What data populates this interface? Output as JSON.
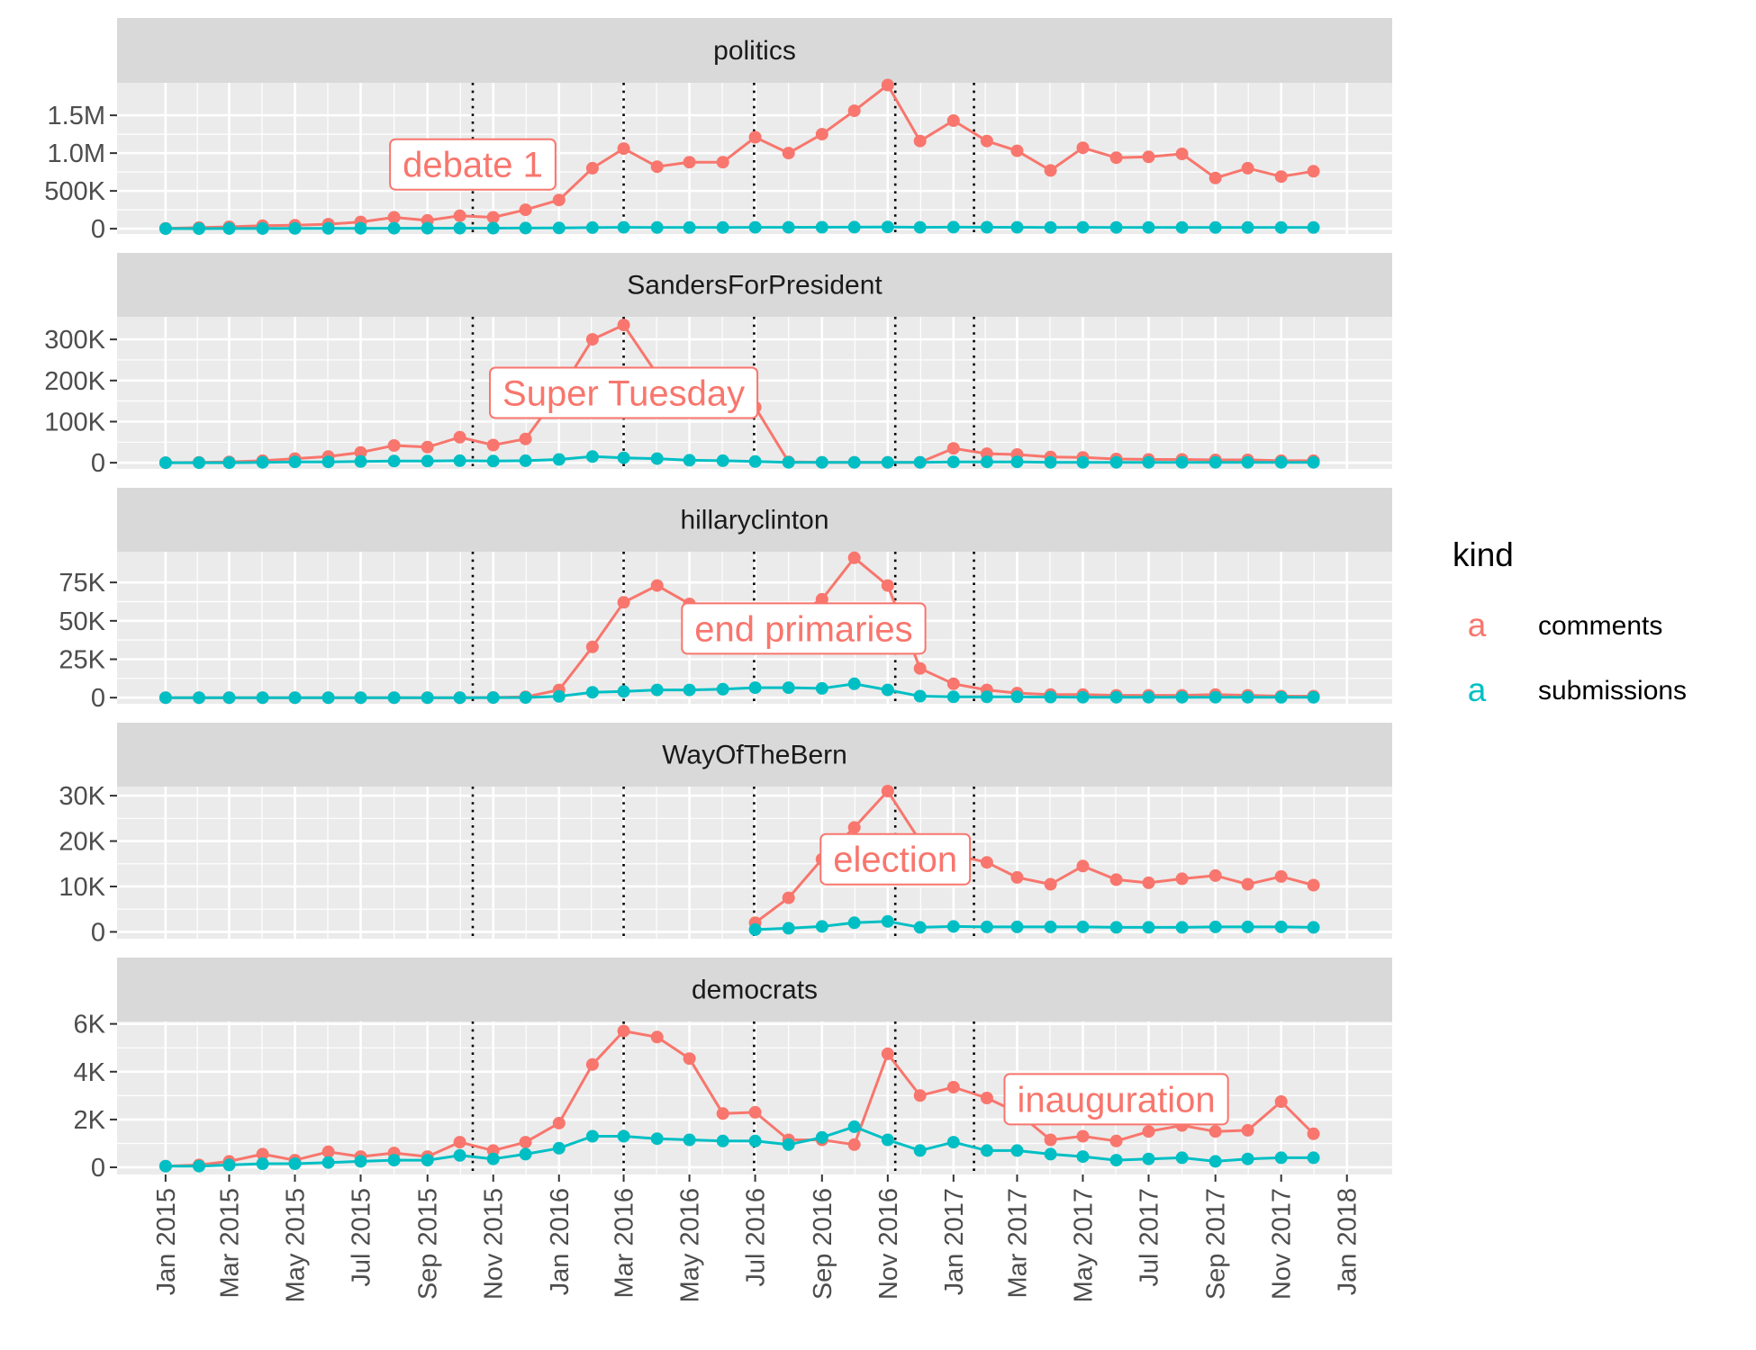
{
  "chart_data": {
    "type": "line",
    "facet_by": "subreddit",
    "x_dates": [
      "2015-01",
      "2015-02",
      "2015-03",
      "2015-04",
      "2015-05",
      "2015-06",
      "2015-07",
      "2015-08",
      "2015-09",
      "2015-10",
      "2015-11",
      "2015-12",
      "2016-01",
      "2016-02",
      "2016-03",
      "2016-04",
      "2016-05",
      "2016-06",
      "2016-07",
      "2016-08",
      "2016-09",
      "2016-10",
      "2016-11",
      "2016-12",
      "2017-01",
      "2017-02",
      "2017-03",
      "2017-04",
      "2017-05",
      "2017-06",
      "2017-07",
      "2017-08",
      "2017-09",
      "2017-10",
      "2017-11",
      "2017-12"
    ],
    "x_ticks": [
      "2015-01",
      "2015-03",
      "2015-05",
      "2015-07",
      "2015-09",
      "2015-11",
      "2016-01",
      "2016-03",
      "2016-05",
      "2016-07",
      "2016-09",
      "2016-11",
      "2017-01",
      "2017-03",
      "2017-05",
      "2017-07",
      "2017-09",
      "2017-11",
      "2018-01"
    ],
    "x_tick_labels": [
      "Jan 2015",
      "Mar 2015",
      "May 2015",
      "Jul 2015",
      "Sep 2015",
      "Nov 2015",
      "Jan 2016",
      "Mar 2016",
      "May 2016",
      "Jul 2016",
      "Sep 2016",
      "Nov 2016",
      "Jan 2017",
      "Mar 2017",
      "May 2017",
      "Jul 2017",
      "Sep 2017",
      "Nov 2017",
      "Jan 2018"
    ],
    "vlines": [
      "2015-10-13",
      "2016-03-01",
      "2016-06-30",
      "2016-11-08",
      "2017-01-20"
    ],
    "legend": {
      "title": "kind",
      "position": "right",
      "key_glyph": "a",
      "entries": [
        {
          "label": "comments",
          "color": "#F8766D"
        },
        {
          "label": "submissions",
          "color": "#00BFC4"
        }
      ]
    },
    "panels": [
      {
        "title": "politics",
        "yticks": [
          0,
          500000,
          1000000,
          1500000
        ],
        "ytick_labels": [
          "0",
          "500K",
          "1.0M",
          "1.5M"
        ],
        "ylim": [
          -70000,
          1930000
        ],
        "series": [
          {
            "name": "comments",
            "color": "#F8766D",
            "start_index": 0,
            "values": [
              5000,
              15000,
              25000,
              40000,
              45000,
              60000,
              90000,
              150000,
              110000,
              170000,
              150000,
              250000,
              380000,
              800000,
              1060000,
              820000,
              880000,
              880000,
              1210000,
              1000000,
              1250000,
              1560000,
              1900000,
              1160000,
              1430000,
              1160000,
              1030000,
              770000,
              1070000,
              940000,
              950000,
              990000,
              670000,
              800000,
              690000,
              760000
            ]
          },
          {
            "name": "submissions",
            "color": "#00BFC4",
            "start_index": 0,
            "values": [
              2000,
              2000,
              3000,
              3000,
              4000,
              4000,
              5000,
              6000,
              6000,
              7000,
              7000,
              8000,
              10000,
              15000,
              18000,
              16000,
              16000,
              16000,
              18000,
              18000,
              19000,
              21000,
              23000,
              18000,
              20000,
              19000,
              18000,
              17000,
              18000,
              17000,
              17000,
              17000,
              16000,
              16000,
              16000,
              16000
            ]
          }
        ],
        "annotation": {
          "label": "debate 1",
          "x": "2015-10-13",
          "y": 850000
        }
      },
      {
        "title": "SandersForPresident",
        "yticks": [
          0,
          100000,
          200000,
          300000
        ],
        "ytick_labels": [
          "0",
          "100K",
          "200K",
          "300K"
        ],
        "ylim": [
          -15000,
          355000
        ],
        "series": [
          {
            "name": "comments",
            "color": "#F8766D",
            "start_index": 0,
            "values": [
              0,
              1000,
              2000,
              5000,
              10000,
              15000,
              25000,
              42000,
              38000,
              62000,
              43000,
              58000,
              170000,
              300000,
              335000,
              215000,
              185000,
              160000,
              135000,
              2000,
              1000,
              1000,
              1000,
              1000,
              35000,
              22000,
              20000,
              14000,
              13000,
              9000,
              8000,
              8000,
              7000,
              7000,
              5000,
              5000
            ]
          },
          {
            "name": "submissions",
            "color": "#00BFC4",
            "start_index": 0,
            "values": [
              0,
              0,
              0,
              1000,
              2000,
              2000,
              3000,
              4000,
              4000,
              5000,
              4000,
              5000,
              8000,
              15000,
              12000,
              10000,
              6000,
              5000,
              3000,
              1000,
              1000,
              1000,
              1000,
              1000,
              2000,
              2000,
              2000,
              1000,
              1000,
              1000,
              1000,
              1000,
              1000,
              1000,
              1000,
              1000
            ]
          }
        ],
        "annotation": {
          "label": "Super Tuesday",
          "x": "2016-03-01",
          "y": 170000
        }
      },
      {
        "title": "hillaryclinton",
        "yticks": [
          0,
          25000,
          50000,
          75000
        ],
        "ytick_labels": [
          "0",
          "25K",
          "50K",
          "75K"
        ],
        "ylim": [
          -4000,
          95000
        ],
        "series": [
          {
            "name": "comments",
            "color": "#F8766D",
            "start_index": 0,
            "values": [
              0,
              0,
              0,
              0,
              0,
              0,
              0,
              0,
              0,
              0,
              100,
              500,
              5000,
              33000,
              62000,
              73000,
              61000,
              45000,
              55000,
              52000,
              64000,
              91000,
              73000,
              19000,
              9000,
              5000,
              3000,
              2000,
              2000,
              1500,
              1500,
              1500,
              2000,
              1500,
              1000,
              1000
            ]
          },
          {
            "name": "submissions",
            "color": "#00BFC4",
            "start_index": 0,
            "values": [
              0,
              0,
              0,
              0,
              0,
              0,
              0,
              0,
              0,
              0,
              50,
              100,
              800,
              3500,
              4000,
              5000,
              5000,
              5500,
              6500,
              6500,
              6000,
              9000,
              5000,
              1000,
              500,
              500,
              500,
              400,
              300,
              300,
              300,
              300,
              300,
              300,
              200,
              200
            ]
          }
        ],
        "annotation": {
          "label": "end primaries",
          "x": "2016-08-15",
          "y": 45000
        }
      },
      {
        "title": "WayOfTheBern",
        "yticks": [
          0,
          10000,
          20000,
          30000
        ],
        "ytick_labels": [
          "0",
          "10K",
          "20K",
          "30K"
        ],
        "ylim": [
          -1500,
          32000
        ],
        "series": [
          {
            "name": "comments",
            "color": "#F8766D",
            "start_index": 18,
            "values": [
              2000,
              7500,
              16000,
              23000,
              31000,
              20000,
              17000,
              15300,
              12000,
              10500,
              14500,
              11500,
              10800,
              11700,
              12400,
              10500,
              12200,
              10300
            ]
          },
          {
            "name": "submissions",
            "color": "#00BFC4",
            "start_index": 18,
            "values": [
              500,
              800,
              1200,
              2000,
              2300,
              1000,
              1200,
              1100,
              1100,
              1100,
              1100,
              1000,
              1000,
              1000,
              1100,
              1100,
              1100,
              1000
            ]
          }
        ],
        "annotation": {
          "label": "election",
          "x": "2016-11-08",
          "y": 16000
        }
      },
      {
        "title": "democrats",
        "yticks": [
          0,
          2000,
          4000,
          6000
        ],
        "ytick_labels": [
          "0",
          "2K",
          "4K",
          "6K"
        ],
        "ylim": [
          -300,
          6100
        ],
        "series": [
          {
            "name": "comments",
            "color": "#F8766D",
            "start_index": 0,
            "values": [
              50,
              100,
              250,
              550,
              300,
              650,
              450,
              600,
              450,
              1050,
              700,
              1050,
              1850,
              4300,
              5700,
              5450,
              4550,
              2250,
              2300,
              1150,
              1150,
              950,
              4750,
              3000,
              3350,
              2900,
              2300,
              1150,
              1300,
              1100,
              1500,
              1750,
              1500,
              1550,
              2750,
              1400
            ]
          },
          {
            "name": "submissions",
            "color": "#00BFC4",
            "start_index": 0,
            "values": [
              50,
              50,
              100,
              150,
              150,
              200,
              250,
              300,
              300,
              500,
              350,
              550,
              800,
              1300,
              1300,
              1200,
              1150,
              1100,
              1100,
              950,
              1250,
              1700,
              1150,
              700,
              1050,
              700,
              700,
              550,
              450,
              300,
              350,
              400,
              250,
              350,
              400,
              400
            ]
          }
        ],
        "annotation": {
          "label": "inauguration",
          "x": "2017-06-01",
          "y": 2850
        }
      }
    ]
  }
}
